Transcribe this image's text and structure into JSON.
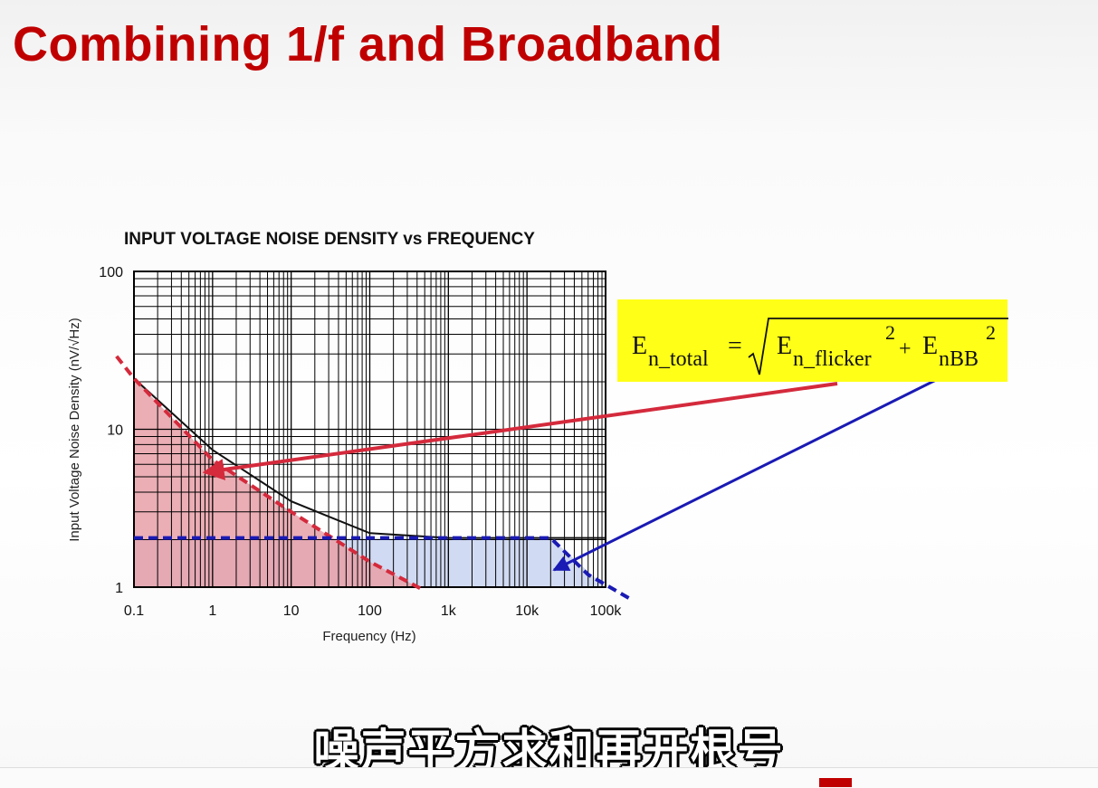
{
  "slide": {
    "title": "Combining 1/f and Broadband",
    "subtitle_caption": "噪声平方求和再开根号"
  },
  "colors": {
    "title": "#c00000",
    "flicker_region": "#e8a0a8",
    "broadband_region": "#c8d4f0",
    "flicker_line": "#d42a3c",
    "broadband_line": "#1a1ab4",
    "formula_background": "#ffff17"
  },
  "formula": {
    "lhs": "E",
    "lhs_sub": "n_total",
    "equals": "=",
    "term1": "E",
    "term1_sub": "n_flicker",
    "term1_sup": "2",
    "plus": "+",
    "term2": "E",
    "term2_sub": "nBB",
    "term2_sup": "2"
  },
  "chart_data": {
    "type": "line",
    "title": "INPUT VOLTAGE NOISE DENSITY vs FREQUENCY",
    "xlabel": "Frequency (Hz)",
    "ylabel": "Input Voltage Noise Density (nV/√Hz)",
    "x_scale": "log",
    "y_scale": "log",
    "xlim": [
      0.1,
      100000
    ],
    "ylim": [
      1,
      100
    ],
    "x_ticks": [
      "0.1",
      "1",
      "10",
      "100",
      "1k",
      "10k",
      "100k"
    ],
    "y_ticks": [
      "1",
      "10",
      "100"
    ],
    "grid": true,
    "series": [
      {
        "kind": "total-noise",
        "x": [
          0.1,
          1,
          10,
          30,
          100,
          1000,
          100000
        ],
        "y": [
          21,
          7.4,
          3.5,
          2.8,
          2.2,
          2.05,
          2.05
        ]
      },
      {
        "kind": "flicker-1/f-asymptote",
        "x": [
          0.06,
          0.1,
          1,
          10,
          100,
          500
        ],
        "y": [
          29,
          21,
          6.4,
          3.0,
          1.45,
          0.95
        ]
      },
      {
        "kind": "broadband-asymptote",
        "x": [
          0.1,
          20000,
          60000,
          200000
        ],
        "y": [
          2.05,
          2.05,
          1.2,
          0.85
        ]
      }
    ]
  }
}
